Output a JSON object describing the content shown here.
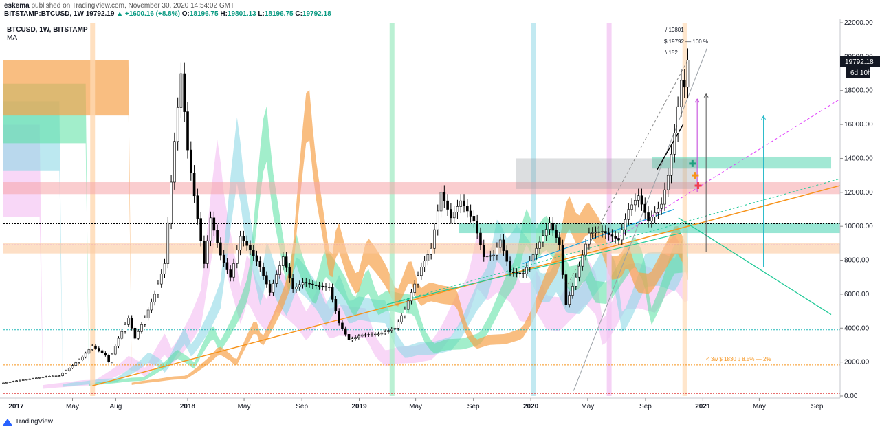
{
  "header": {
    "author": "eskema",
    "published_text": "published on TradingView.com, November 30, 2020 14:54:02 GMT",
    "symbol_line": "BITSTAMP:BTCUSD, 1W",
    "price": "19792.19",
    "change": "+1600.16 (+8.8%)",
    "o_label": "O:",
    "o_value": "18196.75",
    "h_label": "H:",
    "h_value": "19801.13",
    "l_label": "L:",
    "l_value": "18196.75",
    "c_label": "C:",
    "c_value": "19792.18"
  },
  "legend": {
    "title": "BTCUSD, 1W, BITSTAMP",
    "indicator": "MA"
  },
  "annotations": {
    "high_line": "/ 19801",
    "close_line": "$ 19792 — 100 %",
    "bars_line": "\\ 152",
    "bottom_note": "< 3w $ 1830 ↓ 8.5% — 2%"
  },
  "price_badge": "19792.18",
  "countdown_badge": "6d 10h",
  "footer": {
    "brand": "TradingView"
  },
  "colors": {
    "up": "#ffffff",
    "down": "#000000",
    "orange": "#f7a24b",
    "green": "#55e0a0",
    "cyan": "#8fd9e6",
    "pink": "#f2b6f0",
    "red": "#f5a3a8"
  },
  "chart_data": {
    "type": "candlestick",
    "title": "BTCUSD, 1W, BITSTAMP",
    "ylim": [
      0,
      22000
    ],
    "y_scale": "linear",
    "y_ticks": [
      0,
      2000,
      4000,
      6000,
      8000,
      10000,
      12000,
      14000,
      16000,
      18000,
      20000,
      22000
    ],
    "y_tick_labels": [
      "0.00",
      "2000.00",
      "4000.00",
      "6000.00",
      "8000.00",
      "10000.00",
      "12000.00",
      "14000.00",
      "16000.00",
      "18000.00",
      "20000.00",
      "22000.00"
    ],
    "x_range": [
      "2016-12-05",
      "2021-10-20"
    ],
    "x_ticks": [
      {
        "date": "2017-01-01",
        "label": "2017"
      },
      {
        "date": "2017-05-01",
        "label": "May"
      },
      {
        "date": "2017-08-01",
        "label": "Aug"
      },
      {
        "date": "2018-01-01",
        "label": "2018"
      },
      {
        "date": "2018-05-01",
        "label": "May"
      },
      {
        "date": "2018-09-01",
        "label": "Sep"
      },
      {
        "date": "2019-01-01",
        "label": "2019"
      },
      {
        "date": "2019-05-01",
        "label": "May"
      },
      {
        "date": "2019-09-01",
        "label": "Sep"
      },
      {
        "date": "2020-01-01",
        "label": "2020"
      },
      {
        "date": "2020-05-01",
        "label": "May"
      },
      {
        "date": "2020-09-01",
        "label": "Sep"
      },
      {
        "date": "2021-01-01",
        "label": "2021"
      },
      {
        "date": "2021-05-01",
        "label": "May"
      },
      {
        "date": "2021-09-01",
        "label": "Sep"
      }
    ],
    "series_close": [
      [
        "2016-12-05",
        770
      ],
      [
        "2017-01-02",
        900
      ],
      [
        "2017-02-06",
        1030
      ],
      [
        "2017-03-06",
        1150
      ],
      [
        "2017-04-03",
        1190
      ],
      [
        "2017-05-01",
        1800
      ],
      [
        "2017-05-22",
        2300
      ],
      [
        "2017-06-12",
        2950
      ],
      [
        "2017-07-10",
        2400
      ],
      [
        "2017-07-17",
        2000
      ],
      [
        "2017-08-07",
        3400
      ],
      [
        "2017-08-28",
        4600
      ],
      [
        "2017-09-11",
        3400
      ],
      [
        "2017-10-02",
        4600
      ],
      [
        "2017-10-23",
        6000
      ],
      [
        "2017-11-13",
        7800
      ],
      [
        "2017-12-04",
        15000
      ],
      [
        "2017-12-18",
        19000
      ],
      [
        "2018-01-01",
        14500
      ],
      [
        "2018-01-15",
        11800
      ],
      [
        "2018-02-05",
        7800
      ],
      [
        "2018-02-19",
        10500
      ],
      [
        "2018-03-12",
        8300
      ],
      [
        "2018-04-02",
        7000
      ],
      [
        "2018-04-23",
        9400
      ],
      [
        "2018-05-14",
        8600
      ],
      [
        "2018-06-04",
        7600
      ],
      [
        "2018-06-25",
        6100
      ],
      [
        "2018-07-23",
        8200
      ],
      [
        "2018-08-13",
        6300
      ],
      [
        "2018-09-03",
        6700
      ],
      [
        "2018-10-01",
        6500
      ],
      [
        "2018-10-29",
        6400
      ],
      [
        "2018-11-19",
        4300
      ],
      [
        "2018-12-10",
        3300
      ],
      [
        "2019-01-07",
        3600
      ],
      [
        "2019-02-11",
        3650
      ],
      [
        "2019-03-18",
        4000
      ],
      [
        "2019-04-08",
        5100
      ],
      [
        "2019-05-13",
        7600
      ],
      [
        "2019-06-03",
        8700
      ],
      [
        "2019-06-24",
        12000
      ],
      [
        "2019-07-15",
        10500
      ],
      [
        "2019-08-05",
        11500
      ],
      [
        "2019-09-02",
        10300
      ],
      [
        "2019-09-23",
        8200
      ],
      [
        "2019-10-14",
        8300
      ],
      [
        "2019-10-28",
        9200
      ],
      [
        "2019-11-18",
        7300
      ],
      [
        "2019-12-16",
        7200
      ],
      [
        "2020-01-13",
        8700
      ],
      [
        "2020-02-10",
        10200
      ],
      [
        "2020-03-02",
        8900
      ],
      [
        "2020-03-16",
        5400
      ],
      [
        "2020-04-06",
        7000
      ],
      [
        "2020-05-04",
        9600
      ],
      [
        "2020-06-01",
        9700
      ],
      [
        "2020-07-06",
        9200
      ],
      [
        "2020-07-27",
        11000
      ],
      [
        "2020-08-17",
        11800
      ],
      [
        "2020-09-07",
        10300
      ],
      [
        "2020-10-05",
        11300
      ],
      [
        "2020-10-19",
        13000
      ],
      [
        "2020-11-02",
        15500
      ],
      [
        "2020-11-16",
        18600
      ],
      [
        "2020-11-23",
        18200
      ],
      [
        "2020-11-30",
        19792
      ]
    ],
    "last_price": 19792.18,
    "horizontal_lines": [
      {
        "price": 19792,
        "style": "dotted",
        "color": "#000000"
      },
      {
        "price": 10150,
        "style": "dotted",
        "color": "#000000"
      },
      {
        "price": 8900,
        "style": "dotted",
        "color": "#c03bd8"
      },
      {
        "price": 3900,
        "style": "dotted",
        "color": "#22b8b8"
      },
      {
        "price": 1830,
        "style": "dotted",
        "color": "#f7931a"
      },
      {
        "price": 150,
        "style": "dotted",
        "color": "#e04040"
      }
    ],
    "grid": false
  }
}
